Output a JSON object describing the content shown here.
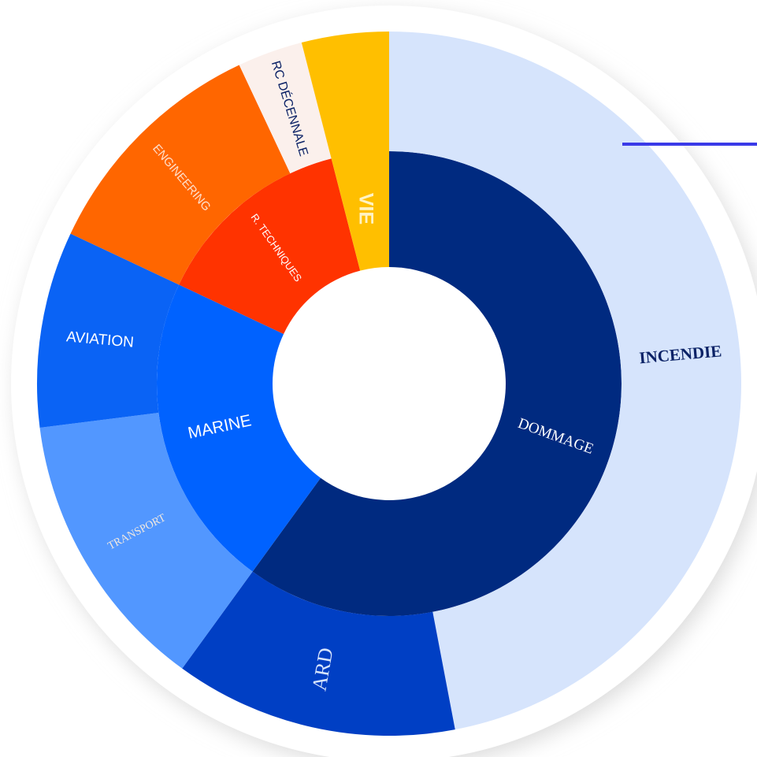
{
  "chart_data": {
    "type": "sunburst",
    "nodes": [
      {
        "name": "DOMMAGE",
        "color": "#002a80",
        "value": 60,
        "children": [
          {
            "name": "INCENDIE",
            "color": "#d6e4fc",
            "value": 47
          },
          {
            "name": "ARD",
            "color": "#003fc4",
            "value": 13
          }
        ]
      },
      {
        "name": "MARINE",
        "color": "#0062ff",
        "value": 22,
        "children": [
          {
            "name": "TRANSPORT",
            "color": "#5297ff",
            "value": 13
          },
          {
            "name": "AVIATION",
            "color": "#0a63f5",
            "value": 9
          }
        ]
      },
      {
        "name": "R. TECHNIQUES",
        "color": "#ff3300",
        "value": 14,
        "children": [
          {
            "name": "ENGINEERING",
            "color": "#ff6600",
            "value": 11
          },
          {
            "name": "RC DÉCENNALE",
            "color": "#fbf0ec",
            "value": 3
          }
        ]
      },
      {
        "name": "VIE",
        "color": "#ffbf00",
        "value": 4
      }
    ]
  }
}
